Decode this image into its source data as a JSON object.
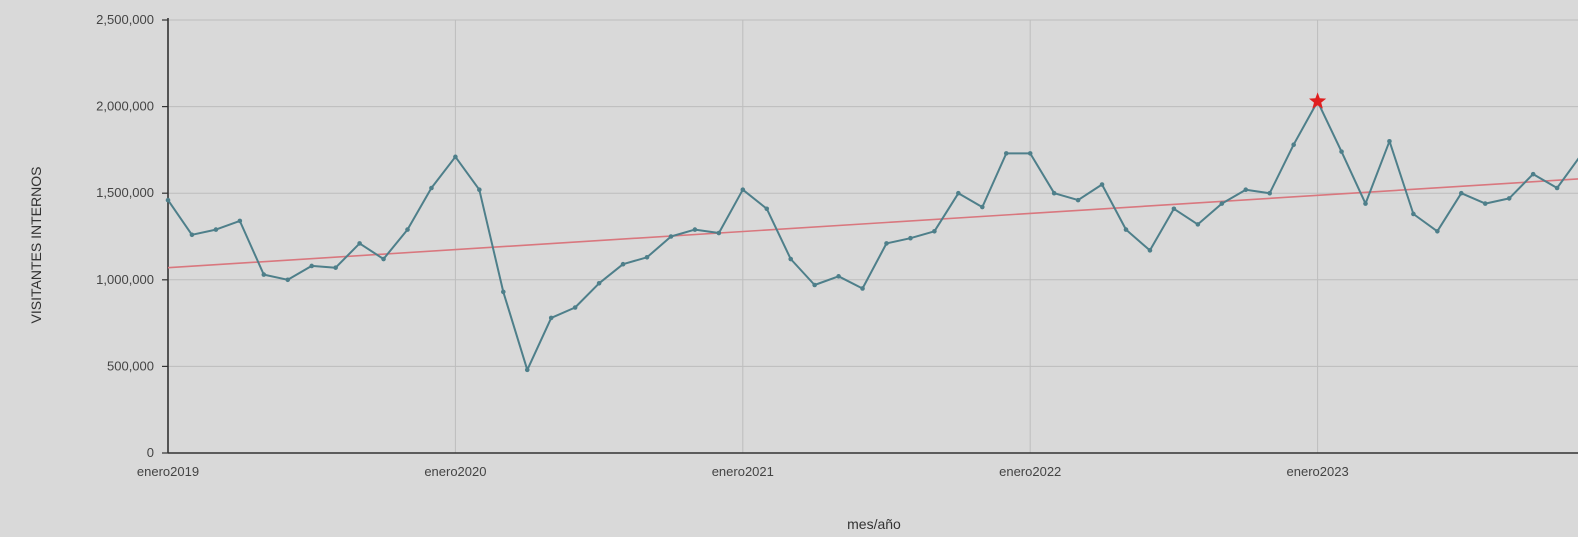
{
  "chart_data": {
    "type": "line",
    "title": "",
    "xlabel": "mes/año",
    "ylabel": "VISITANTES INTERNOS",
    "x_tick_labels": [
      {
        "month_index": 0,
        "label": "enero2019"
      },
      {
        "month_index": 12,
        "label": "enero2020"
      },
      {
        "month_index": 24,
        "label": "enero2021"
      },
      {
        "month_index": 36,
        "label": "enero2022"
      },
      {
        "month_index": 48,
        "label": "enero2023"
      }
    ],
    "y_ticks": [
      {
        "value": 0,
        "label": "0"
      },
      {
        "value": 500000,
        "label": "500,000"
      },
      {
        "value": 1000000,
        "label": "1,000,000"
      },
      {
        "value": 1500000,
        "label": "1,500,000"
      },
      {
        "value": 2000000,
        "label": "2,000,000"
      },
      {
        "value": 2500000,
        "label": "2,500,000"
      }
    ],
    "ylim": [
      0,
      2500000
    ],
    "grid": true,
    "series": [
      {
        "color": "#4e7f8a",
        "values": [
          1460000,
          1260000,
          1290000,
          1340000,
          1030000,
          1000000,
          1080000,
          1070000,
          1210000,
          1120000,
          1290000,
          1530000,
          1710000,
          1520000,
          930000,
          480000,
          780000,
          840000,
          980000,
          1090000,
          1130000,
          1250000,
          1290000,
          1270000,
          1520000,
          1410000,
          1120000,
          970000,
          1020000,
          950000,
          1210000,
          1240000,
          1280000,
          1500000,
          1420000,
          1730000,
          1730000,
          1500000,
          1460000,
          1550000,
          1290000,
          1170000,
          1410000,
          1320000,
          1440000,
          1520000,
          1500000,
          1780000,
          2030000,
          1740000,
          1440000,
          1800000,
          1380000,
          1280000,
          1500000,
          1440000,
          1470000,
          1610000,
          1530000,
          1720000
        ]
      }
    ],
    "trend_line": {
      "color": "#d9777e",
      "start_value": 1070000,
      "slope_per_month": 8700
    },
    "highlight": {
      "month_index": 48,
      "value": 2030000,
      "marker": "star",
      "color": "#e01f1f"
    }
  }
}
